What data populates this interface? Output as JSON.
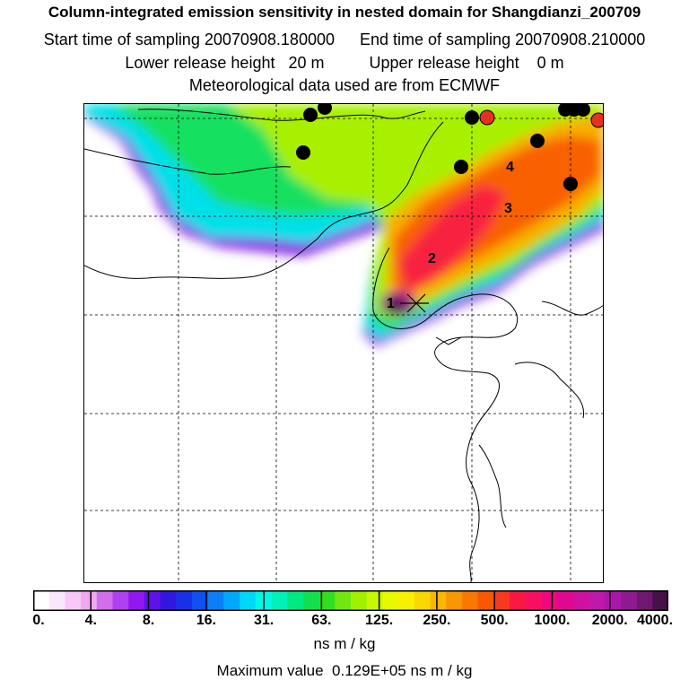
{
  "header": {
    "title": "Column-integrated emission sensitivity in nested domain for Shangdianzi_200709",
    "start_label": "Start time of sampling 20070908.180000",
    "end_label": "End time of sampling 20070908.210000",
    "lower_label": "Lower release height   20 m",
    "upper_label": "Upper release height    0 m",
    "met_label": "Meteorological data used are from ECMWF"
  },
  "map": {
    "trajectory_labels": [
      "1",
      "2",
      "3",
      "4"
    ],
    "station_marker": "cross-marker",
    "markers": {
      "black_count": 11,
      "red_count": 2,
      "black_color": "#000000",
      "red_color": "#e8301e"
    }
  },
  "colorbar": {
    "ticks": [
      "0.",
      "4.",
      "8.",
      "16.",
      "31.",
      "63.",
      "125.",
      "250.",
      "500.",
      "1000.",
      "2000.",
      "4000."
    ],
    "colors": [
      "#ffffff",
      "#fce6fc",
      "#f8c8f8",
      "#f0a8f0",
      "#d070e8",
      "#b040f0",
      "#9018f0",
      "#6010e8",
      "#3018e0",
      "#1830e8",
      "#1050f0",
      "#0a80f4",
      "#00a8f8",
      "#00d8f8",
      "#00f8e8",
      "#00f0b8",
      "#00e880",
      "#10e050",
      "#30e020",
      "#70e810",
      "#a0f000",
      "#c8f800",
      "#e8f800",
      "#f8f000",
      "#f8d800",
      "#f8b800",
      "#f89800",
      "#f87800",
      "#f85800",
      "#f83820",
      "#f81840",
      "#f81060",
      "#f00880",
      "#e00890",
      "#d010a0",
      "#c018a8",
      "#a818a8",
      "#901890",
      "#701870",
      "#481048"
    ],
    "units": "ns m / kg"
  },
  "summary": {
    "max_label": "Maximum value  0.129E+05 ns m / kg"
  }
}
